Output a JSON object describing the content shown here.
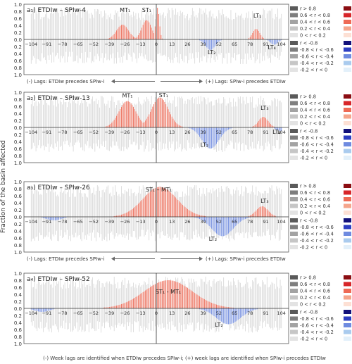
{
  "figure": {
    "ylabel": "Fraction of the basin affected",
    "caption": "(-) Week lags are identified when ETDIw precedes SPIw-i; (+) week lags are identified when SPIw-i precedes ETDIw"
  },
  "legend": {
    "pos": [
      "r > 0.8",
      "0.6 < r < 0.8",
      "0.4 < r < 0.6",
      "0.2 < r < 0.4",
      "0 < r < 0.2"
    ],
    "neg": [
      "r < -0.8",
      "-0.8 < r < -0.6",
      "-0.6 < r < -0.4",
      "-0.4 < r < -0.2",
      "-0.2 < r < 0"
    ],
    "pos_colors": [
      "#8b0d12",
      "#d7262a",
      "#ee6a55",
      "#f5a58c",
      "#fde0d4"
    ],
    "neg_colors": [
      "#12117a",
      "#2d3ec1",
      "#6f8be0",
      "#aacbee",
      "#e3f0fa"
    ],
    "gray_colors": [
      "#5a5a5a",
      "#7e7e7e",
      "#a3a3a3",
      "#c6c6c6",
      "#e3e3e3"
    ]
  },
  "chart_data": [
    {
      "type": "bar",
      "title": "a₁) ETDIw – SPIw-4",
      "x_ticks": [
        -104,
        -91,
        -78,
        -65,
        -52,
        -39,
        -26,
        -13,
        0,
        13,
        26,
        39,
        52,
        65,
        78,
        91,
        104
      ],
      "xlim": [
        -110,
        110
      ],
      "ylim_pos": [
        0,
        1.0
      ],
      "ylim_neg": [
        0,
        1.0
      ],
      "y_ticks_pos": [
        "1.0",
        "0.8",
        "0.6",
        "0.4",
        "0.2",
        "0.0"
      ],
      "y_ticks_neg": [
        "0.2",
        "0.4",
        "0.6",
        "0.8",
        "1.0"
      ],
      "lag_notes": {
        "left": "(-) Lags: ETDIw precedes SPIw-i",
        "right": "(+) Lags: SPIw-i precedes ETDIw"
      },
      "annotations": [
        {
          "text": "MT₁",
          "x": -26,
          "y": 0.78
        },
        {
          "text": "ST₁",
          "x": -8,
          "y": 0.78
        },
        {
          "text": "LT₁",
          "x": 84,
          "y": 0.62
        },
        {
          "text": "LT₂",
          "x": 46,
          "y": -0.42
        },
        {
          "text": "LT₄",
          "x": 96,
          "y": -0.28
        }
      ],
      "peaks": [
        {
          "c": -28,
          "w": 5,
          "a": 0.42,
          "sign": 1
        },
        {
          "c": -8,
          "w": 4,
          "a": 0.55,
          "sign": 1
        },
        {
          "c": 1,
          "w": 1.5,
          "a": 0.9,
          "sign": 1
        },
        {
          "c": 83,
          "w": 3,
          "a": 0.3,
          "sign": 1
        },
        {
          "c": 45,
          "w": 4,
          "a": 0.3,
          "sign": -1
        },
        {
          "c": 98,
          "w": 3,
          "a": 0.15,
          "sign": -1
        }
      ]
    },
    {
      "type": "bar",
      "title": "a₂) ETDIw – SPIw-13",
      "x_ticks": [
        -104,
        -91,
        -78,
        -65,
        -52,
        -39,
        -26,
        -13,
        0,
        13,
        26,
        39,
        52,
        65,
        78,
        91,
        104
      ],
      "xlim": [
        -110,
        110
      ],
      "ylim_pos": [
        0,
        1.0
      ],
      "ylim_neg": [
        0,
        1.0
      ],
      "y_ticks_pos": [
        "1.0",
        "0.8",
        "0.6",
        "0.4",
        "0.2",
        "0.0"
      ],
      "y_ticks_neg": [
        "0.2",
        "0.4",
        "0.6",
        "0.8",
        "1.0"
      ],
      "lag_notes": null,
      "annotations": [
        {
          "text": "MT₁",
          "x": -24,
          "y": 0.85
        },
        {
          "text": "ST₁",
          "x": 6,
          "y": 0.86
        },
        {
          "text": "LT₃",
          "x": 90,
          "y": 0.5
        },
        {
          "text": "LT₂",
          "x": 40,
          "y": -0.55
        },
        {
          "text": "LT₄",
          "x": 100,
          "y": -0.18
        }
      ],
      "peaks": [
        {
          "c": -24,
          "w": 7,
          "a": 0.75,
          "sign": 1
        },
        {
          "c": 3,
          "w": 7,
          "a": 0.85,
          "sign": 1
        },
        {
          "c": 89,
          "w": 4,
          "a": 0.3,
          "sign": 1
        },
        {
          "c": 45,
          "w": 7,
          "a": 0.6,
          "sign": -1
        },
        {
          "c": 103,
          "w": 3,
          "a": 0.1,
          "sign": -1
        }
      ]
    },
    {
      "type": "bar",
      "title": "a₃) ETDIw – SPIw-26",
      "x_ticks": [
        -104,
        -91,
        -78,
        -65,
        -52,
        -39,
        -26,
        -13,
        0,
        13,
        26,
        39,
        52,
        65,
        78,
        91,
        104
      ],
      "xlim": [
        -110,
        110
      ],
      "ylim_pos": [
        0,
        1.0
      ],
      "ylim_neg": [
        0,
        1.0
      ],
      "y_ticks_pos": [
        "1.0",
        "0.8",
        "0.6",
        "0.4",
        "0.2",
        "0.0"
      ],
      "y_ticks_neg": [
        "0.2",
        "0.4",
        "0.6",
        "0.8",
        "1.0"
      ],
      "lag_notes": {
        "left": "(-) Lags: ETDIw precedes SPIw-i",
        "right": "(+) Lags: SPIw-i precedes ETDIw"
      },
      "annotations": [
        {
          "text": "ST₁ – MT₁",
          "x": 2,
          "y": 0.72
        },
        {
          "text": "LT₃",
          "x": 90,
          "y": 0.4
        },
        {
          "text": "LT₂",
          "x": 47,
          "y": -0.68
        }
      ],
      "peaks": [
        {
          "c": 3,
          "w": 14,
          "a": 0.85,
          "sign": 1
        },
        {
          "c": 88,
          "w": 5,
          "a": 0.3,
          "sign": 1
        },
        {
          "c": 55,
          "w": 9,
          "a": 0.55,
          "sign": -1
        },
        {
          "c": -85,
          "w": 6,
          "a": 0.1,
          "sign": -1
        }
      ]
    },
    {
      "type": "bar",
      "title": "a₄) ETDIw – SPIw-52",
      "x_ticks": [
        -104,
        -91,
        -78,
        -65,
        -52,
        -39,
        -26,
        -13,
        0,
        13,
        26,
        39,
        52,
        65,
        78,
        91,
        104
      ],
      "xlim": [
        -110,
        110
      ],
      "ylim_pos": [
        0,
        1.0
      ],
      "ylim_neg": [
        0,
        1.0
      ],
      "y_ticks_pos": [
        "1.0",
        "0.8",
        "0.6",
        "0.4",
        "0.2",
        "0.0"
      ],
      "y_ticks_neg": [
        "0.2",
        "0.4",
        "0.6",
        "0.8",
        "1.0"
      ],
      "lag_notes": null,
      "annotations": [
        {
          "text": "ST₁ - MT₁",
          "x": 10,
          "y": 0.42
        },
        {
          "text": "LT₂",
          "x": 52,
          "y": -0.52
        }
      ],
      "peaks": [
        {
          "c": 10,
          "w": 20,
          "a": 0.8,
          "sign": 1
        },
        {
          "c": 60,
          "w": 10,
          "a": 0.45,
          "sign": -1
        },
        {
          "c": -95,
          "w": 6,
          "a": 0.1,
          "sign": -1
        }
      ]
    }
  ]
}
